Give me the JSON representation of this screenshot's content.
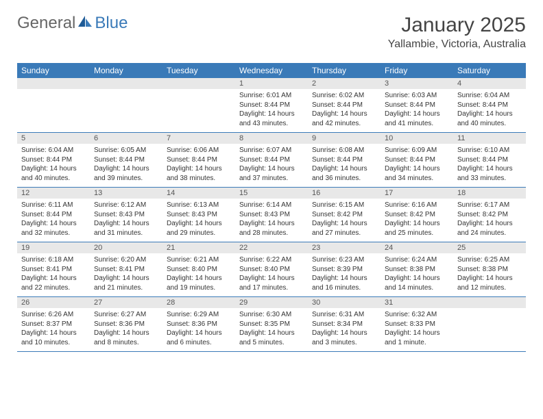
{
  "logo": {
    "textA": "General",
    "textB": "Blue"
  },
  "title": "January 2025",
  "location": "Yallambie, Victoria, Australia",
  "colors": {
    "header_bg": "#3a7ab8",
    "header_fg": "#ffffff",
    "daynum_bg": "#e8e8e8",
    "border": "#3a7ab8",
    "logo_blue": "#3a7ab8",
    "logo_gray": "#666666"
  },
  "day_headers": [
    "Sunday",
    "Monday",
    "Tuesday",
    "Wednesday",
    "Thursday",
    "Friday",
    "Saturday"
  ],
  "weeks": [
    [
      {
        "n": "",
        "sunrise": "",
        "sunset": "",
        "daylight": ""
      },
      {
        "n": "",
        "sunrise": "",
        "sunset": "",
        "daylight": ""
      },
      {
        "n": "",
        "sunrise": "",
        "sunset": "",
        "daylight": ""
      },
      {
        "n": "1",
        "sunrise": "Sunrise: 6:01 AM",
        "sunset": "Sunset: 8:44 PM",
        "daylight": "Daylight: 14 hours and 43 minutes."
      },
      {
        "n": "2",
        "sunrise": "Sunrise: 6:02 AM",
        "sunset": "Sunset: 8:44 PM",
        "daylight": "Daylight: 14 hours and 42 minutes."
      },
      {
        "n": "3",
        "sunrise": "Sunrise: 6:03 AM",
        "sunset": "Sunset: 8:44 PM",
        "daylight": "Daylight: 14 hours and 41 minutes."
      },
      {
        "n": "4",
        "sunrise": "Sunrise: 6:04 AM",
        "sunset": "Sunset: 8:44 PM",
        "daylight": "Daylight: 14 hours and 40 minutes."
      }
    ],
    [
      {
        "n": "5",
        "sunrise": "Sunrise: 6:04 AM",
        "sunset": "Sunset: 8:44 PM",
        "daylight": "Daylight: 14 hours and 40 minutes."
      },
      {
        "n": "6",
        "sunrise": "Sunrise: 6:05 AM",
        "sunset": "Sunset: 8:44 PM",
        "daylight": "Daylight: 14 hours and 39 minutes."
      },
      {
        "n": "7",
        "sunrise": "Sunrise: 6:06 AM",
        "sunset": "Sunset: 8:44 PM",
        "daylight": "Daylight: 14 hours and 38 minutes."
      },
      {
        "n": "8",
        "sunrise": "Sunrise: 6:07 AM",
        "sunset": "Sunset: 8:44 PM",
        "daylight": "Daylight: 14 hours and 37 minutes."
      },
      {
        "n": "9",
        "sunrise": "Sunrise: 6:08 AM",
        "sunset": "Sunset: 8:44 PM",
        "daylight": "Daylight: 14 hours and 36 minutes."
      },
      {
        "n": "10",
        "sunrise": "Sunrise: 6:09 AM",
        "sunset": "Sunset: 8:44 PM",
        "daylight": "Daylight: 14 hours and 34 minutes."
      },
      {
        "n": "11",
        "sunrise": "Sunrise: 6:10 AM",
        "sunset": "Sunset: 8:44 PM",
        "daylight": "Daylight: 14 hours and 33 minutes."
      }
    ],
    [
      {
        "n": "12",
        "sunrise": "Sunrise: 6:11 AM",
        "sunset": "Sunset: 8:44 PM",
        "daylight": "Daylight: 14 hours and 32 minutes."
      },
      {
        "n": "13",
        "sunrise": "Sunrise: 6:12 AM",
        "sunset": "Sunset: 8:43 PM",
        "daylight": "Daylight: 14 hours and 31 minutes."
      },
      {
        "n": "14",
        "sunrise": "Sunrise: 6:13 AM",
        "sunset": "Sunset: 8:43 PM",
        "daylight": "Daylight: 14 hours and 29 minutes."
      },
      {
        "n": "15",
        "sunrise": "Sunrise: 6:14 AM",
        "sunset": "Sunset: 8:43 PM",
        "daylight": "Daylight: 14 hours and 28 minutes."
      },
      {
        "n": "16",
        "sunrise": "Sunrise: 6:15 AM",
        "sunset": "Sunset: 8:42 PM",
        "daylight": "Daylight: 14 hours and 27 minutes."
      },
      {
        "n": "17",
        "sunrise": "Sunrise: 6:16 AM",
        "sunset": "Sunset: 8:42 PM",
        "daylight": "Daylight: 14 hours and 25 minutes."
      },
      {
        "n": "18",
        "sunrise": "Sunrise: 6:17 AM",
        "sunset": "Sunset: 8:42 PM",
        "daylight": "Daylight: 14 hours and 24 minutes."
      }
    ],
    [
      {
        "n": "19",
        "sunrise": "Sunrise: 6:18 AM",
        "sunset": "Sunset: 8:41 PM",
        "daylight": "Daylight: 14 hours and 22 minutes."
      },
      {
        "n": "20",
        "sunrise": "Sunrise: 6:20 AM",
        "sunset": "Sunset: 8:41 PM",
        "daylight": "Daylight: 14 hours and 21 minutes."
      },
      {
        "n": "21",
        "sunrise": "Sunrise: 6:21 AM",
        "sunset": "Sunset: 8:40 PM",
        "daylight": "Daylight: 14 hours and 19 minutes."
      },
      {
        "n": "22",
        "sunrise": "Sunrise: 6:22 AM",
        "sunset": "Sunset: 8:40 PM",
        "daylight": "Daylight: 14 hours and 17 minutes."
      },
      {
        "n": "23",
        "sunrise": "Sunrise: 6:23 AM",
        "sunset": "Sunset: 8:39 PM",
        "daylight": "Daylight: 14 hours and 16 minutes."
      },
      {
        "n": "24",
        "sunrise": "Sunrise: 6:24 AM",
        "sunset": "Sunset: 8:38 PM",
        "daylight": "Daylight: 14 hours and 14 minutes."
      },
      {
        "n": "25",
        "sunrise": "Sunrise: 6:25 AM",
        "sunset": "Sunset: 8:38 PM",
        "daylight": "Daylight: 14 hours and 12 minutes."
      }
    ],
    [
      {
        "n": "26",
        "sunrise": "Sunrise: 6:26 AM",
        "sunset": "Sunset: 8:37 PM",
        "daylight": "Daylight: 14 hours and 10 minutes."
      },
      {
        "n": "27",
        "sunrise": "Sunrise: 6:27 AM",
        "sunset": "Sunset: 8:36 PM",
        "daylight": "Daylight: 14 hours and 8 minutes."
      },
      {
        "n": "28",
        "sunrise": "Sunrise: 6:29 AM",
        "sunset": "Sunset: 8:36 PM",
        "daylight": "Daylight: 14 hours and 6 minutes."
      },
      {
        "n": "29",
        "sunrise": "Sunrise: 6:30 AM",
        "sunset": "Sunset: 8:35 PM",
        "daylight": "Daylight: 14 hours and 5 minutes."
      },
      {
        "n": "30",
        "sunrise": "Sunrise: 6:31 AM",
        "sunset": "Sunset: 8:34 PM",
        "daylight": "Daylight: 14 hours and 3 minutes."
      },
      {
        "n": "31",
        "sunrise": "Sunrise: 6:32 AM",
        "sunset": "Sunset: 8:33 PM",
        "daylight": "Daylight: 14 hours and 1 minute."
      },
      {
        "n": "",
        "sunrise": "",
        "sunset": "",
        "daylight": ""
      }
    ]
  ]
}
